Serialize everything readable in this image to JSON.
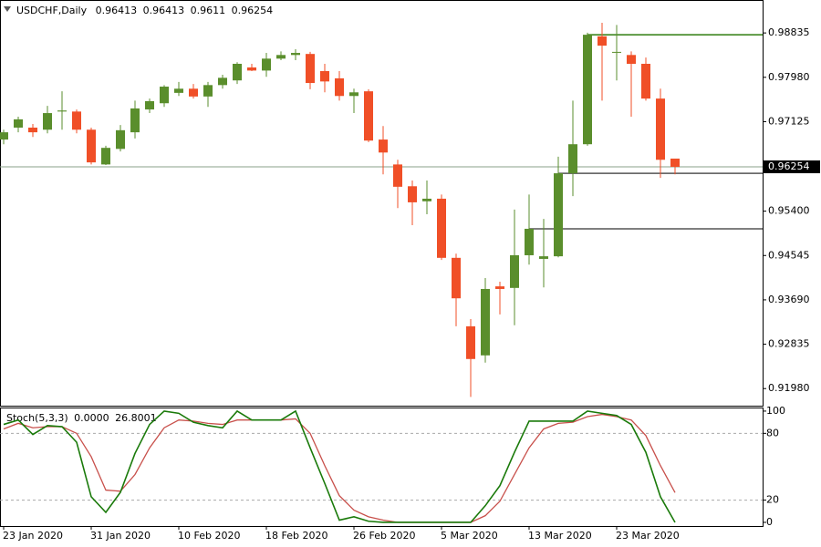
{
  "chart_data": [
    {
      "type": "candlestick",
      "symbol": "USDCHF,Daily",
      "categories": [
        "23 Jan 2020",
        null,
        null,
        null,
        null,
        null,
        "31 Jan 2020",
        null,
        null,
        null,
        null,
        null,
        "10 Feb 2020",
        null,
        null,
        null,
        null,
        null,
        "18 Feb 2020",
        null,
        null,
        null,
        null,
        null,
        "26 Feb 2020",
        null,
        null,
        null,
        null,
        null,
        "5 Mar 2020",
        null,
        null,
        null,
        null,
        null,
        "13 Mar 2020",
        null,
        null,
        null,
        null,
        null,
        "23 Mar 2020",
        null,
        null,
        null,
        null
      ],
      "open": [
        0.9678,
        0.9701,
        0.9701,
        0.9697,
        0.9732,
        0.9732,
        0.9697,
        0.963,
        0.966,
        0.9692,
        0.9736,
        0.9748,
        0.9768,
        0.9776,
        0.9761,
        0.9783,
        0.9792,
        0.9817,
        0.9811,
        0.9834,
        0.9841,
        0.9843,
        0.981,
        0.9796,
        0.9762,
        0.9771,
        0.9678,
        0.963,
        0.9588,
        0.9559,
        0.9564,
        0.945,
        0.9318,
        0.9262,
        0.9395,
        0.9392,
        0.9455,
        0.9448,
        0.9453,
        0.9613,
        0.9669,
        0.9877,
        0.9847,
        0.9841,
        0.9824,
        0.9757,
        0.96413
      ],
      "high": [
        0.9697,
        0.9722,
        0.9708,
        0.9743,
        0.9771,
        0.9736,
        0.9701,
        0.9666,
        0.9706,
        0.9753,
        0.9757,
        0.9783,
        0.9789,
        0.9785,
        0.9789,
        0.9803,
        0.9827,
        0.9824,
        0.9845,
        0.9848,
        0.9852,
        0.9847,
        0.9824,
        0.981,
        0.9776,
        0.9775,
        0.9704,
        0.9639,
        0.9599,
        0.9599,
        0.9572,
        0.9458,
        0.9332,
        0.9411,
        0.9404,
        0.9543,
        0.9572,
        0.9525,
        0.9645,
        0.9753,
        0.9884,
        0.9903,
        0.9899,
        0.9848,
        0.9836,
        0.9776,
        0.96413
      ],
      "low": [
        0.9669,
        0.9692,
        0.9683,
        0.969,
        0.9697,
        0.969,
        0.963,
        0.9629,
        0.9655,
        0.968,
        0.9729,
        0.9741,
        0.9762,
        0.9757,
        0.9741,
        0.9776,
        0.9785,
        0.981,
        0.9799,
        0.9831,
        0.9831,
        0.9775,
        0.9769,
        0.9753,
        0.9729,
        0.9673,
        0.9611,
        0.9546,
        0.9513,
        0.9534,
        0.9446,
        0.9318,
        0.9182,
        0.9248,
        0.9341,
        0.932,
        0.9437,
        0.9393,
        0.9451,
        0.9569,
        0.9666,
        0.9753,
        0.9792,
        0.9722,
        0.9753,
        0.9604,
        0.9611
      ],
      "close": [
        0.9692,
        0.9717,
        0.9692,
        0.9729,
        0.9734,
        0.9697,
        0.9634,
        0.9662,
        0.9696,
        0.9738,
        0.9752,
        0.978,
        0.9776,
        0.9761,
        0.9783,
        0.9797,
        0.9824,
        0.9811,
        0.9834,
        0.9841,
        0.9845,
        0.9787,
        0.979,
        0.9762,
        0.9769,
        0.9676,
        0.9653,
        0.9587,
        0.9557,
        0.9564,
        0.945,
        0.9372,
        0.9255,
        0.939,
        0.939,
        0.9455,
        0.9506,
        0.9453,
        0.9613,
        0.9669,
        0.988,
        0.9859,
        0.9847,
        0.9824,
        0.9757,
        0.9639,
        0.96254
      ],
      "up_color": "#5a8e2c",
      "down_color": "#f04f27",
      "ylim": [
        0.9165,
        0.9947
      ],
      "yticks": [
        0.98835,
        {
          "value": 0.9798,
          "label": "0.97980"
        },
        0.97125,
        {
          "value": 0.954,
          "label": "0.95400"
        },
        0.94545,
        {
          "value": 0.9369,
          "label": "0.93690"
        },
        0.92835,
        {
          "value": 0.9198,
          "label": "0.91980"
        }
      ],
      "levels": [
        {
          "value": 0.988,
          "color": "#2f7d0f"
        },
        {
          "value": 0.9613,
          "color": "#555555"
        },
        {
          "value": 0.9506,
          "color": "#555555"
        }
      ],
      "bid_line_color": "#8aa08a"
    },
    {
      "type": "line",
      "title": "Stoch(5,3,3)",
      "series": [
        {
          "name": "Main",
          "color": "#1a7a0a",
          "last_label": "0.0000",
          "values": [
            88,
            92,
            79,
            87,
            86,
            72,
            23,
            9,
            27,
            62,
            88,
            100,
            98,
            90,
            87,
            85,
            100,
            92,
            92,
            92,
            100,
            67,
            35,
            2,
            5,
            1,
            0,
            0,
            0,
            0,
            0,
            0,
            0,
            15,
            33,
            63,
            91,
            91,
            91,
            91,
            100,
            98,
            96,
            88,
            63,
            23,
            0
          ]
        },
        {
          "name": "Signal",
          "color": "#c8504b",
          "values": [
            84,
            89,
            85,
            86,
            86,
            80,
            59,
            29,
            28,
            43,
            67,
            85,
            92,
            91,
            89,
            88,
            92,
            92,
            92,
            92,
            93,
            80,
            51,
            24,
            11,
            5,
            2,
            0,
            0,
            0,
            0,
            0,
            0,
            6,
            19,
            43,
            67,
            84,
            89,
            90,
            95,
            97,
            95,
            92,
            78,
            51,
            26.8001
          ]
        }
      ],
      "ylim": [
        -3.3,
        102.4
      ],
      "yticks": [
        0,
        20,
        80,
        100
      ],
      "grid_lines": [
        20,
        80
      ]
    }
  ]
}
